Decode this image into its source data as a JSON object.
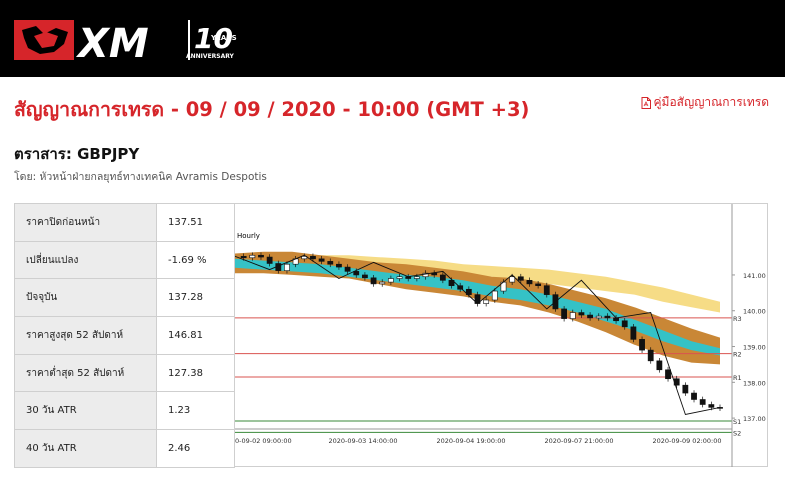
{
  "brand": {
    "logo_text": "XM",
    "anniversary_number": "10",
    "anniversary_years": "YEARS",
    "anniversary_label": "ANNIVERSARY"
  },
  "title": "สัญญาณการเทรด - 09 / 09 / 2020 - 10:00 (GMT +3)",
  "guide_link": "คู่มือสัญญาณการเทรด",
  "instrument_label": "ตราสาร: GBPJPY",
  "author": "โดย: หัวหน้าฝ่ายกลยุทธ์ทางเทคนิค Avramis Despotis",
  "stats": [
    {
      "label": "ราคาปิดก่อนหน้า",
      "value": "137.51"
    },
    {
      "label": "เปลี่ยนแปลง",
      "value": "-1.69 %"
    },
    {
      "label": "ปัจจุบัน",
      "value": "137.28"
    },
    {
      "label": "ราคาสูงสุด 52 สัปดาห์",
      "value": "146.81"
    },
    {
      "label": "ราคาต่ำสุด 52 สัปดาห์",
      "value": "127.38"
    },
    {
      "label": "30 วัน ATR",
      "value": "1.23"
    },
    {
      "label": "40 วัน ATR",
      "value": "2.46"
    }
  ],
  "chart_data": {
    "type": "line",
    "title": "Hourly",
    "timeframe": "Hourly",
    "x_tick_labels": [
      "0-09-02 09:00:00",
      "2020-09-03 14:00:00",
      "2020-09-04 19:00:00",
      "2020-09-07 21:00:00",
      "2020-09-09 02:00:00"
    ],
    "y_tick_labels": [
      "141.00",
      "140.00",
      "139.00",
      "138.00",
      "137.00"
    ],
    "ylim": [
      136.5,
      142.2
    ],
    "levels": [
      {
        "name": "R3",
        "value": 139.8,
        "color": "#d9534f"
      },
      {
        "name": "R2",
        "value": 138.8,
        "color": "#d9534f"
      },
      {
        "name": "R1",
        "value": 138.15,
        "color": "#d9534f"
      },
      {
        "name": "S1",
        "value": 136.92,
        "color": "#3a8a3a"
      },
      {
        "name": "S2",
        "value": 136.6,
        "color": "#3a8a3a"
      }
    ],
    "price": [
      141.52,
      141.48,
      141.55,
      141.5,
      141.32,
      141.12,
      141.3,
      141.45,
      141.52,
      141.45,
      141.38,
      141.3,
      141.22,
      141.1,
      141.0,
      140.92,
      140.75,
      140.8,
      140.9,
      140.95,
      140.9,
      140.95,
      141.05,
      141.0,
      140.85,
      140.7,
      140.6,
      140.45,
      140.2,
      140.3,
      140.55,
      140.8,
      140.95,
      140.85,
      140.75,
      140.7,
      140.45,
      140.05,
      139.78,
      139.95,
      139.88,
      139.8,
      139.85,
      139.8,
      139.72,
      139.55,
      139.2,
      138.9,
      138.6,
      138.35,
      138.1,
      137.92,
      137.7,
      137.52,
      137.38,
      137.3,
      137.28
    ],
    "zigzag": [
      141.52,
      141.15,
      141.55,
      140.9,
      141.35,
      140.95,
      141.1,
      140.2,
      141.0,
      140.05,
      140.85,
      139.8,
      139.95,
      137.1,
      137.3
    ],
    "cloud_yellow_top": [
      141.6,
      141.6,
      141.6,
      141.55,
      141.55,
      141.5,
      141.45,
      141.4,
      141.3,
      141.25,
      141.2,
      141.15,
      141.05,
      140.95,
      140.8,
      140.65,
      140.45,
      140.25
    ],
    "cloud_yellow_bot": [
      141.4,
      141.35,
      141.3,
      141.3,
      141.2,
      141.15,
      141.1,
      141.05,
      141.0,
      140.95,
      140.85,
      140.75,
      140.65,
      140.55,
      140.45,
      140.25,
      140.1,
      139.95
    ],
    "cloud_orange_top": [
      141.6,
      141.65,
      141.65,
      141.55,
      141.45,
      141.35,
      141.3,
      141.2,
      141.1,
      140.95,
      140.9,
      140.75,
      140.55,
      140.35,
      140.1,
      139.8,
      139.5,
      139.25
    ],
    "cloud_orange_bot": [
      141.05,
      141.05,
      141.0,
      140.95,
      140.9,
      140.75,
      140.6,
      140.5,
      140.4,
      140.25,
      140.15,
      139.95,
      139.7,
      139.4,
      139.05,
      138.75,
      138.55,
      138.5
    ],
    "cloud_teal_top": [
      141.45,
      141.4,
      141.35,
      141.3,
      141.2,
      141.1,
      141.0,
      140.95,
      140.85,
      140.7,
      140.6,
      140.45,
      140.25,
      140.05,
      139.75,
      139.45,
      139.15,
      138.95
    ],
    "cloud_teal_bot": [
      141.2,
      141.15,
      141.1,
      141.05,
      140.95,
      140.85,
      140.75,
      140.65,
      140.55,
      140.4,
      140.3,
      140.15,
      139.95,
      139.7,
      139.45,
      139.15,
      138.9,
      138.75
    ]
  }
}
